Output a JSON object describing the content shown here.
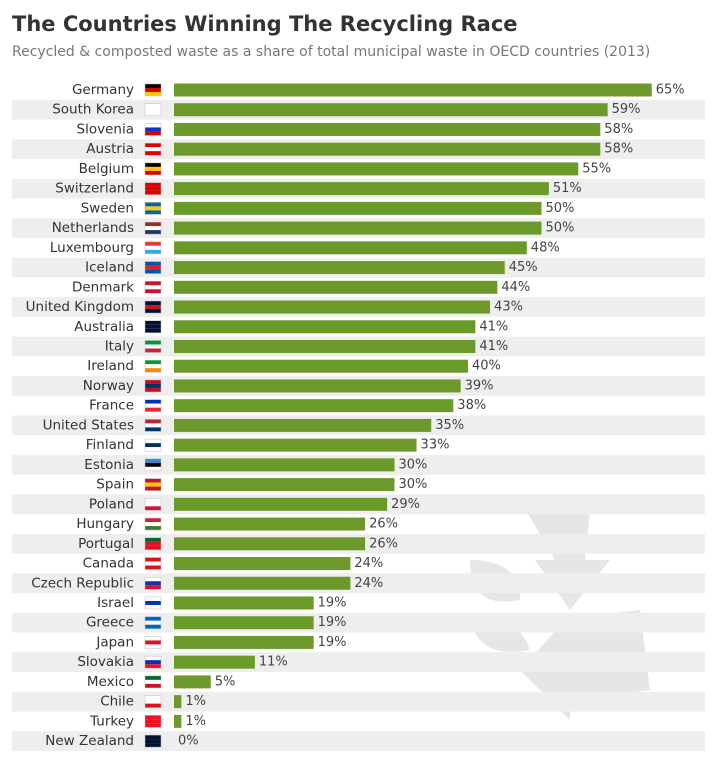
{
  "chart_data": {
    "type": "bar",
    "orientation": "horizontal",
    "title": "The Countries Winning The Recycling Race",
    "subtitle": "Recycled & composted waste as a share of total municipal waste in OECD countries (2013)",
    "categories": [
      "Germany",
      "South Korea",
      "Slovenia",
      "Austria",
      "Belgium",
      "Switzerland",
      "Sweden",
      "Netherlands",
      "Luxembourg",
      "Iceland",
      "Denmark",
      "United Kingdom",
      "Australia",
      "Italy",
      "Ireland",
      "Norway",
      "France",
      "United States",
      "Finland",
      "Estonia",
      "Spain",
      "Poland",
      "Hungary",
      "Portugal",
      "Canada",
      "Czech Republic",
      "Israel",
      "Greece",
      "Japan",
      "Slovakia",
      "Mexico",
      "Chile",
      "Turkey",
      "New Zealand"
    ],
    "values": [
      65,
      59,
      58,
      58,
      55,
      51,
      50,
      50,
      48,
      45,
      44,
      43,
      41,
      41,
      40,
      39,
      38,
      35,
      33,
      30,
      30,
      29,
      26,
      26,
      24,
      24,
      19,
      19,
      19,
      11,
      5,
      1,
      1,
      0
    ],
    "value_labels": [
      "65%",
      "59%",
      "58%",
      "58%",
      "55%",
      "51%",
      "50%",
      "50%",
      "48%",
      "45%",
      "44%",
      "43%",
      "41%",
      "41%",
      "40%",
      "39%",
      "38%",
      "35%",
      "33%",
      "30%",
      "30%",
      "29%",
      "26%",
      "26%",
      "24%",
      "24%",
      "19%",
      "19%",
      "19%",
      "11%",
      "5%",
      "1%",
      "1%",
      "0%"
    ],
    "color": "#6b9a2b"
  }
}
